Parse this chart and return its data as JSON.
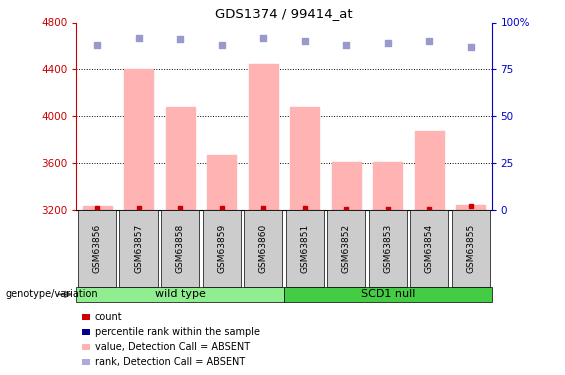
{
  "title": "GDS1374 / 99414_at",
  "samples": [
    "GSM63856",
    "GSM63857",
    "GSM63858",
    "GSM63859",
    "GSM63860",
    "GSM63851",
    "GSM63852",
    "GSM63853",
    "GSM63854",
    "GSM63855"
  ],
  "bar_values": [
    3230,
    4400,
    4080,
    3670,
    4450,
    4080,
    3610,
    3610,
    3870,
    3240
  ],
  "rank_dots": [
    88,
    92,
    91,
    88,
    92,
    90,
    88,
    89,
    90,
    87
  ],
  "ylim_left": [
    3200,
    4800
  ],
  "ylim_right": [
    0,
    100
  ],
  "yticks_left": [
    3200,
    3600,
    4000,
    4400,
    4800
  ],
  "yticks_right": [
    0,
    25,
    50,
    75,
    100
  ],
  "ytick_right_labels": [
    "0",
    "25",
    "50",
    "75",
    "100%"
  ],
  "bar_color": "#ffb3b3",
  "dot_color_rank": "#9999cc",
  "dot_color_count": "#cc0000",
  "wild_type_label": "wild type",
  "scd1_null_label": "SCD1 null",
  "genotype_label": "genotype/variation",
  "legend_labels": [
    "count",
    "percentile rank within the sample",
    "value, Detection Call = ABSENT",
    "rank, Detection Call = ABSENT"
  ],
  "legend_colors": [
    "#cc0000",
    "#00008b",
    "#ffb3b3",
    "#aaaadd"
  ],
  "left_axis_color": "#cc0000",
  "right_axis_color": "#0000cc",
  "count_dots": [
    3220,
    3215,
    3215,
    3215,
    3215,
    3215,
    3210,
    3210,
    3210,
    3230
  ],
  "wt_color": "#90ee90",
  "scd_color": "#44cc44",
  "xtick_bg": "#cccccc"
}
